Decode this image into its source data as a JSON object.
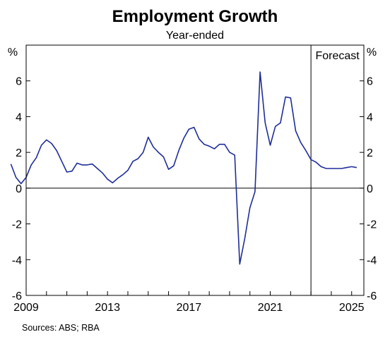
{
  "chart_data": {
    "type": "line",
    "title": "Employment Growth",
    "subtitle": "Year-ended",
    "ylabel_left": "%",
    "ylabel_right": "%",
    "ylim": [
      -6,
      8
    ],
    "yticks": [
      6,
      4,
      2,
      0,
      -2,
      -4,
      -6
    ],
    "ytick_labels": [
      "6",
      "4",
      "2",
      "0",
      "-2",
      "-4",
      "-6"
    ],
    "xlim": [
      2009,
      2025.6
    ],
    "xtick_labels": [
      "2009",
      "2013",
      "2017",
      "2021",
      "2025"
    ],
    "xtick_values": [
      2009,
      2013,
      2017,
      2021,
      2025
    ],
    "forecast_start": 2023.0,
    "forecast_label": "Forecast",
    "source": "Sources: ABS; RBA",
    "series": [
      {
        "color": "#1f2d9a",
        "x": [
          2008.25,
          2008.5,
          2008.75,
          2009.0,
          2009.25,
          2009.5,
          2009.75,
          2010.0,
          2010.25,
          2010.5,
          2010.75,
          2011.0,
          2011.25,
          2011.5,
          2011.75,
          2012.0,
          2012.25,
          2012.5,
          2012.75,
          2013.0,
          2013.25,
          2013.5,
          2013.75,
          2014.0,
          2014.25,
          2014.5,
          2014.75,
          2015.0,
          2015.25,
          2015.5,
          2015.75,
          2016.0,
          2016.25,
          2016.5,
          2016.75,
          2017.0,
          2017.25,
          2017.5,
          2017.75,
          2018.0,
          2018.25,
          2018.5,
          2018.75,
          2019.0,
          2019.25,
          2019.5,
          2019.75,
          2020.0,
          2020.25,
          2020.5,
          2020.75,
          2021.0,
          2021.25,
          2021.5,
          2021.75,
          2022.0,
          2022.25,
          2022.5,
          2022.75,
          2023.0,
          2023.25,
          2023.5,
          2023.75,
          2024.0,
          2024.25,
          2024.5,
          2024.75,
          2025.0,
          2025.25
        ],
        "y": [
          1.35,
          0.6,
          0.25,
          0.6,
          1.3,
          1.7,
          2.4,
          2.7,
          2.5,
          2.1,
          1.5,
          0.9,
          0.95,
          1.4,
          1.3,
          1.3,
          1.35,
          1.1,
          0.85,
          0.5,
          0.3,
          0.55,
          0.75,
          1.0,
          1.5,
          1.65,
          2.0,
          2.85,
          2.3,
          2.0,
          1.75,
          1.05,
          1.25,
          2.1,
          2.8,
          3.3,
          3.4,
          2.75,
          2.45,
          2.35,
          2.2,
          2.45,
          2.45,
          2.0,
          1.85,
          -4.25,
          -2.8,
          -1.1,
          -0.2,
          6.5,
          3.65,
          2.4,
          3.45,
          3.65,
          5.1,
          5.05,
          3.2,
          2.55,
          2.1,
          1.6,
          1.45,
          1.2,
          1.1,
          1.1,
          1.1,
          1.1,
          1.15,
          1.2,
          1.15
        ]
      }
    ]
  }
}
